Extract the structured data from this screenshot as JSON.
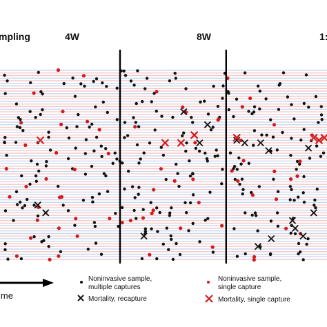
{
  "chart_data": {
    "type": "scatter",
    "title": "",
    "xlabel": "ime",
    "ylabel": "",
    "time_markers": [
      {
        "label": "4W",
        "x": 4
      },
      {
        "label": "8W",
        "x": 8
      },
      {
        "label": "1:",
        "x": 12
      }
    ],
    "sampling_label": "mpling",
    "xlim": [
      -0.6,
      11.8
    ],
    "track_rows": 74,
    "grid": false,
    "legend": {
      "placement": "bottom",
      "entries": [
        {
          "key": "multi",
          "label_lines": [
            "Noninvasive sample,",
            "multiple captures"
          ],
          "marker": "dot",
          "color": "#111111"
        },
        {
          "key": "single",
          "label_lines": [
            "Noninvasive sample,",
            "single capture"
          ],
          "marker": "dot",
          "color": "#d11a1a"
        },
        {
          "key": "mort_recap",
          "label_lines": [
            "Mortality, recapture"
          ],
          "marker": "x",
          "color": "#111111"
        },
        {
          "key": "mort_single",
          "label_lines": [
            "Mortality, single capture"
          ],
          "marker": "x",
          "color": "#d11a1a"
        }
      ]
    },
    "colors": {
      "multi": "#111111",
      "single": "#d11a1a",
      "line_red": "#f2b6b6",
      "line_blue": "#b9c8ec",
      "marker_line": "#000000"
    },
    "mortality_recapture": [
      {
        "x": 0.9,
        "row": 52
      },
      {
        "x": 1.2,
        "row": 55
      },
      {
        "x": 4.9,
        "row": 64
      },
      {
        "x": 6.4,
        "row": 16
      },
      {
        "x": 7.0,
        "row": 28
      },
      {
        "x": 7.3,
        "row": 21
      },
      {
        "x": 8.4,
        "row": 27
      },
      {
        "x": 8.7,
        "row": 28
      },
      {
        "x": 9.3,
        "row": 28
      },
      {
        "x": 9.6,
        "row": 31
      },
      {
        "x": 9.2,
        "row": 68
      },
      {
        "x": 9.7,
        "row": 65
      },
      {
        "x": 10.5,
        "row": 58
      },
      {
        "x": 10.6,
        "row": 61
      },
      {
        "x": 10.9,
        "row": 64
      },
      {
        "x": 11.1,
        "row": 30
      },
      {
        "x": 11.3,
        "row": 55
      }
    ],
    "mortality_single": [
      {
        "x": 1.0,
        "row": 27
      },
      {
        "x": 5.7,
        "row": 28
      },
      {
        "x": 6.3,
        "row": 28
      },
      {
        "x": 6.8,
        "row": 25
      },
      {
        "x": 8.4,
        "row": 26
      },
      {
        "x": 11.3,
        "row": 26
      },
      {
        "x": 11.5,
        "row": 27
      },
      {
        "x": 11.7,
        "row": 26
      }
    ]
  }
}
